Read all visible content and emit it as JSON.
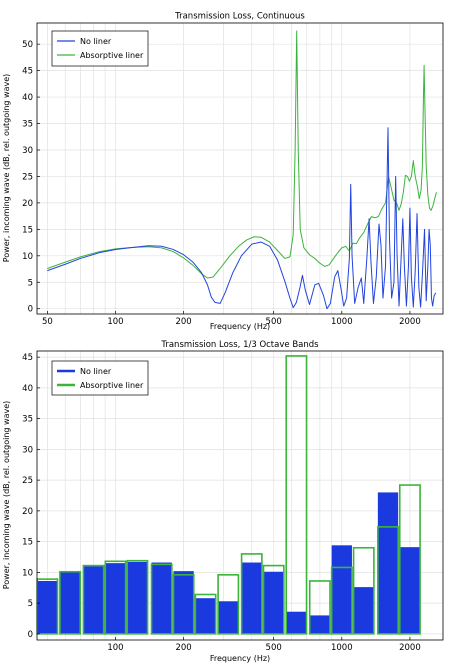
{
  "chart_data": [
    {
      "type": "line",
      "title": "Transmission Loss, Continuous",
      "xlabel": "Frequency (Hz)",
      "ylabel": "Power, incoming wave (dB, rel. outgoing wave)",
      "xscale": "log",
      "xlim": [
        45,
        2800
      ],
      "ylim": [
        -1,
        54
      ],
      "xticks": [
        50,
        100,
        200,
        500,
        1000,
        2000
      ],
      "yticks": [
        0,
        5,
        10,
        15,
        20,
        25,
        30,
        35,
        40,
        45,
        50
      ],
      "grid": true,
      "legend": "top-left",
      "series": [
        {
          "name": "No liner",
          "color": "#2244dd",
          "points": [
            [
              50,
              7.2
            ],
            [
              60,
              8.4
            ],
            [
              70,
              9.5
            ],
            [
              85,
              10.6
            ],
            [
              100,
              11.2
            ],
            [
              120,
              11.6
            ],
            [
              140,
              11.9
            ],
            [
              160,
              11.8
            ],
            [
              180,
              11.2
            ],
            [
              200,
              10.2
            ],
            [
              220,
              8.8
            ],
            [
              240,
              6.8
            ],
            [
              255,
              4.5
            ],
            [
              265,
              2.2
            ],
            [
              275,
              1.2
            ],
            [
              290,
              1.0
            ],
            [
              305,
              3.0
            ],
            [
              330,
              6.8
            ],
            [
              360,
              10.0
            ],
            [
              400,
              12.2
            ],
            [
              440,
              12.6
            ],
            [
              480,
              11.8
            ],
            [
              520,
              9.2
            ],
            [
              560,
              5.2
            ],
            [
              590,
              2.0
            ],
            [
              610,
              0.2
            ],
            [
              630,
              1.2
            ],
            [
              655,
              4.2
            ],
            [
              670,
              6.3
            ],
            [
              690,
              3.5
            ],
            [
              720,
              0.8
            ],
            [
              760,
              4.5
            ],
            [
              790,
              4.8
            ],
            [
              830,
              2.5
            ],
            [
              860,
              0.0
            ],
            [
              890,
              1.0
            ],
            [
              930,
              6.0
            ],
            [
              960,
              7.2
            ],
            [
              990,
              4.0
            ],
            [
              1020,
              0.5
            ],
            [
              1050,
              2.0
            ],
            [
              1080,
              9.5
            ],
            [
              1095,
              23.5
            ],
            [
              1110,
              10.0
            ],
            [
              1140,
              1.0
            ],
            [
              1180,
              4.0
            ],
            [
              1220,
              5.8
            ],
            [
              1250,
              1.0
            ],
            [
              1290,
              9.5
            ],
            [
              1320,
              17.0
            ],
            [
              1345,
              9.0
            ],
            [
              1380,
              1.0
            ],
            [
              1420,
              6.0
            ],
            [
              1460,
              16.0
            ],
            [
              1490,
              12.0
            ],
            [
              1520,
              2.0
            ],
            [
              1560,
              8.0
            ],
            [
              1600,
              34.2
            ],
            [
              1625,
              13.0
            ],
            [
              1660,
              2.0
            ],
            [
              1700,
              5.0
            ],
            [
              1730,
              25.0
            ],
            [
              1755,
              10.0
            ],
            [
              1790,
              0.5
            ],
            [
              1830,
              10.0
            ],
            [
              1860,
              17.0
            ],
            [
              1890,
              8.0
            ],
            [
              1930,
              0.5
            ],
            [
              1970,
              8.0
            ],
            [
              2000,
              19.0
            ],
            [
              2030,
              6.0
            ],
            [
              2070,
              0.3
            ],
            [
              2110,
              7.0
            ],
            [
              2150,
              18.0
            ],
            [
              2190,
              4.0
            ],
            [
              2230,
              0.3
            ],
            [
              2280,
              8.0
            ],
            [
              2320,
              15.0
            ],
            [
              2360,
              1.5
            ],
            [
              2400,
              8.0
            ],
            [
              2430,
              15.0
            ],
            [
              2460,
              12.0
            ],
            [
              2490,
              2.0
            ],
            [
              2520,
              0.5
            ],
            [
              2560,
              2.5
            ],
            [
              2600,
              3.0
            ]
          ]
        },
        {
          "name": "Absorptive liner",
          "color": "#3cb33c",
          "points": [
            [
              50,
              7.6
            ],
            [
              60,
              8.8
            ],
            [
              70,
              9.8
            ],
            [
              85,
              10.8
            ],
            [
              100,
              11.3
            ],
            [
              120,
              11.6
            ],
            [
              140,
              11.7
            ],
            [
              160,
              11.5
            ],
            [
              180,
              10.8
            ],
            [
              200,
              9.6
            ],
            [
              220,
              8.2
            ],
            [
              240,
              6.6
            ],
            [
              255,
              5.8
            ],
            [
              270,
              6.0
            ],
            [
              290,
              7.6
            ],
            [
              320,
              10.0
            ],
            [
              350,
              11.8
            ],
            [
              380,
              13.0
            ],
            [
              410,
              13.6
            ],
            [
              440,
              13.5
            ],
            [
              480,
              12.6
            ],
            [
              520,
              11.0
            ],
            [
              560,
              9.5
            ],
            [
              590,
              9.8
            ],
            [
              610,
              14.0
            ],
            [
              622,
              30.0
            ],
            [
              632,
              52.5
            ],
            [
              642,
              30.0
            ],
            [
              655,
              15.0
            ],
            [
              680,
              11.5
            ],
            [
              720,
              10.2
            ],
            [
              760,
              9.5
            ],
            [
              800,
              8.6
            ],
            [
              840,
              8.0
            ],
            [
              880,
              8.3
            ],
            [
              920,
              9.5
            ],
            [
              960,
              10.6
            ],
            [
              1000,
              11.5
            ],
            [
              1040,
              11.8
            ],
            [
              1080,
              10.9
            ],
            [
              1120,
              12.4
            ],
            [
              1160,
              12.3
            ],
            [
              1200,
              13.4
            ],
            [
              1250,
              14.4
            ],
            [
              1300,
              16.0
            ],
            [
              1350,
              17.4
            ],
            [
              1400,
              17.2
            ],
            [
              1450,
              17.4
            ],
            [
              1500,
              18.8
            ],
            [
              1560,
              20.0
            ],
            [
              1610,
              24.9
            ],
            [
              1650,
              23.0
            ],
            [
              1700,
              20.5
            ],
            [
              1750,
              19.9
            ],
            [
              1790,
              18.6
            ],
            [
              1830,
              19.8
            ],
            [
              1870,
              22.0
            ],
            [
              1910,
              25.2
            ],
            [
              1950,
              25.0
            ],
            [
              1990,
              24.1
            ],
            [
              2030,
              25.0
            ],
            [
              2070,
              28.0
            ],
            [
              2110,
              25.0
            ],
            [
              2160,
              23.0
            ],
            [
              2200,
              20.8
            ],
            [
              2240,
              22.4
            ],
            [
              2270,
              27.0
            ],
            [
              2295,
              40.0
            ],
            [
              2310,
              46.0
            ],
            [
              2330,
              38.0
            ],
            [
              2360,
              27.0
            ],
            [
              2400,
              21.5
            ],
            [
              2440,
              19.0
            ],
            [
              2480,
              18.6
            ],
            [
              2530,
              19.5
            ],
            [
              2580,
              21.0
            ],
            [
              2620,
              22.0
            ]
          ]
        }
      ]
    },
    {
      "type": "bar",
      "title": "Transmission Loss, 1/3 Octave Bands",
      "xlabel": "Frequency (Hz)",
      "ylabel": "Power, incoming wave (dB, rel. outgoing wave)",
      "xscale": "log",
      "xlim": [
        45,
        2800
      ],
      "ylim": [
        -1,
        46
      ],
      "xticks": [
        100,
        200,
        500,
        1000,
        2000
      ],
      "yticks": [
        0,
        5,
        10,
        15,
        20,
        25,
        30,
        35,
        40,
        45
      ],
      "grid": true,
      "legend": "top-left",
      "band_centers": [
        50,
        63,
        80,
        100,
        125,
        160,
        200,
        250,
        315,
        400,
        500,
        630,
        800,
        1000,
        1250,
        1600,
        2000
      ],
      "series": [
        {
          "name": "No liner",
          "color": "#1a3ae0",
          "values": [
            8.6,
            10.0,
            11.0,
            11.5,
            11.7,
            11.6,
            10.2,
            5.8,
            5.3,
            11.6,
            10.1,
            3.6,
            3.0,
            14.4,
            7.6,
            23.0,
            14.1
          ]
        },
        {
          "name": "Absorptive liner",
          "color": "#3cb33c",
          "values": [
            8.9,
            10.1,
            11.1,
            11.8,
            11.9,
            11.3,
            9.6,
            6.4,
            9.6,
            13.0,
            11.1,
            45.2,
            8.6,
            10.8,
            14.0,
            17.4,
            24.2
          ]
        }
      ]
    }
  ]
}
